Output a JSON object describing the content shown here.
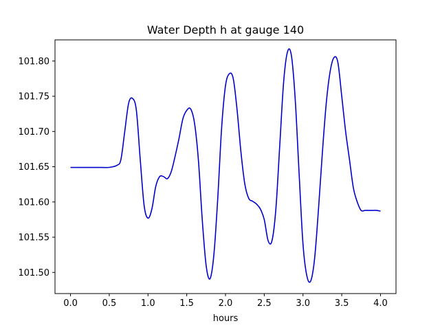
{
  "chart_data": {
    "type": "line",
    "title": "Water Depth h at gauge 140",
    "xlabel": "hours",
    "ylabel": "",
    "xlim": [
      -0.2,
      4.2
    ],
    "ylim": [
      101.47,
      101.83
    ],
    "xticks": [
      0.0,
      0.5,
      1.0,
      1.5,
      2.0,
      2.5,
      3.0,
      3.5,
      4.0
    ],
    "xtick_labels": [
      "0.0",
      "0.5",
      "1.0",
      "1.5",
      "2.0",
      "2.5",
      "3.0",
      "3.5",
      "4.0"
    ],
    "yticks": [
      101.5,
      101.55,
      101.6,
      101.65,
      101.7,
      101.75,
      101.8
    ],
    "ytick_labels": [
      "101.50",
      "101.55",
      "101.60",
      "101.65",
      "101.70",
      "101.75",
      "101.80"
    ],
    "grid": false,
    "series": [
      {
        "color": "#0000cc",
        "x": [
          0.0,
          0.2,
          0.4,
          0.5,
          0.6,
          0.65,
          0.7,
          0.75,
          0.8,
          0.85,
          0.9,
          0.95,
          1.0,
          1.05,
          1.1,
          1.15,
          1.2,
          1.25,
          1.3,
          1.35,
          1.4,
          1.45,
          1.5,
          1.55,
          1.6,
          1.65,
          1.7,
          1.75,
          1.8,
          1.85,
          1.9,
          1.95,
          2.0,
          2.05,
          2.1,
          2.15,
          2.2,
          2.25,
          2.3,
          2.35,
          2.4,
          2.45,
          2.5,
          2.55,
          2.6,
          2.65,
          2.7,
          2.75,
          2.8,
          2.85,
          2.9,
          2.95,
          3.0,
          3.05,
          3.1,
          3.15,
          3.2,
          3.25,
          3.3,
          3.35,
          3.4,
          3.45,
          3.5,
          3.55,
          3.6,
          3.65,
          3.7,
          3.75,
          3.8,
          3.85,
          3.9,
          3.95,
          4.0
        ],
        "y": [
          101.649,
          101.649,
          101.649,
          101.649,
          101.652,
          101.66,
          101.7,
          101.74,
          101.747,
          101.73,
          101.66,
          101.595,
          101.577,
          101.59,
          101.622,
          101.636,
          101.636,
          101.633,
          101.643,
          101.665,
          101.69,
          101.718,
          101.73,
          101.732,
          101.712,
          101.66,
          101.575,
          101.51,
          101.491,
          101.525,
          101.605,
          101.705,
          101.765,
          101.782,
          101.775,
          101.73,
          101.67,
          101.625,
          101.605,
          101.601,
          101.597,
          101.59,
          101.575,
          101.545,
          101.545,
          101.59,
          101.68,
          101.77,
          101.813,
          101.808,
          101.745,
          101.64,
          101.54,
          101.495,
          101.488,
          101.52,
          101.59,
          101.67,
          101.74,
          101.785,
          101.805,
          101.798,
          101.75,
          101.7,
          101.66,
          101.62,
          101.6,
          101.588,
          101.588,
          101.588,
          101.588,
          101.588,
          101.587
        ]
      }
    ]
  }
}
